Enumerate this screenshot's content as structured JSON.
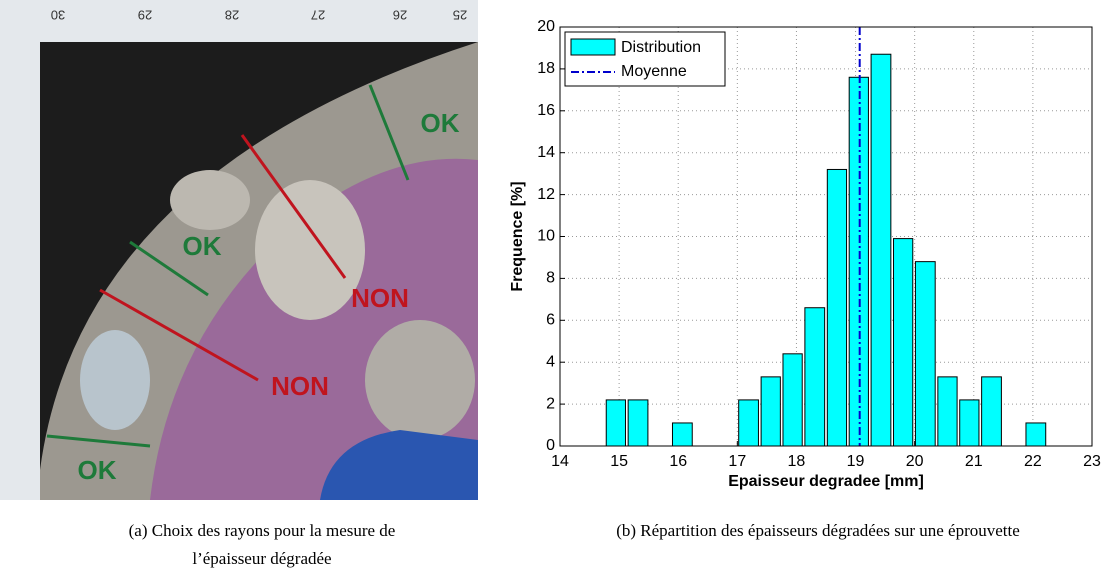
{
  "figure": {
    "photo": {
      "ruler_labels": [
        "30",
        "29",
        "28",
        "27",
        "26",
        "25"
      ],
      "annotations": [
        "OK",
        "OK",
        "NON",
        "NON",
        "OK"
      ]
    },
    "captions": {
      "a": [
        "(a) Choix des rayons pour la mesure de",
        "l’épaisseur dégradée"
      ],
      "b": [
        "(b) Répartition des épaisseurs dégradées sur une éprouvette"
      ]
    }
  },
  "chart_data": {
    "type": "histogram",
    "xlabel": "Epaisseur degradee [mm]",
    "ylabel": "Frequence [%]",
    "bins": [
      14.76,
      15.13,
      15.51,
      15.88,
      16.26,
      16.63,
      17.0,
      17.38,
      17.75,
      18.12,
      18.5,
      18.87,
      19.24,
      19.62,
      19.99,
      20.37,
      20.74,
      21.11,
      21.49,
      21.86,
      22.24
    ],
    "series": [
      {
        "name": "Distribution",
        "color": "#00ffff",
        "values": [
          2.2,
          2.2,
          0,
          1.1,
          0,
          0,
          2.2,
          3.3,
          4.4,
          6.6,
          13.2,
          17.6,
          18.7,
          9.9,
          8.8,
          3.3,
          2.2,
          3.3,
          0,
          1.1
        ]
      }
    ],
    "mean": {
      "name": "Moyenne",
      "value": 19.07,
      "color": "#0000cc"
    },
    "xlim": [
      14,
      23
    ],
    "xticks": [
      14,
      15,
      16,
      17,
      18,
      19,
      20,
      21,
      22,
      23
    ],
    "ylim": [
      0,
      20
    ],
    "yticks": [
      0,
      2,
      4,
      6,
      8,
      10,
      12,
      14,
      16,
      18,
      20
    ],
    "grid": true,
    "legend": "top-left"
  }
}
